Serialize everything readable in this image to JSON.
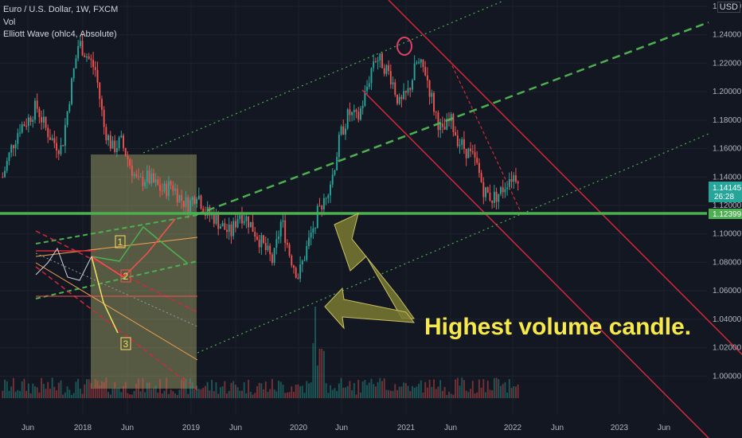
{
  "header": {
    "title": "Euro / U.S. Dollar, 1W, FXCM",
    "indicator_1": "Vol",
    "indicator_2": "Elliott Wave (ohlc4, Absolute)"
  },
  "currency_label": "USD",
  "chart_data": {
    "type": "candlestick",
    "xlabel": "",
    "ylabel": "",
    "ylim": [
      0.98,
      1.26
    ],
    "x_ticks": [
      "Jun",
      "2018",
      "Jun",
      "2019",
      "Jun",
      "2020",
      "Jun",
      "2021",
      "Jun",
      "2022",
      "Jun",
      "2023",
      "Jun"
    ],
    "y_ticks": [
      "1.26000",
      "1.24000",
      "1.22000",
      "1.20000",
      "1.18000",
      "1.16000",
      "1.14000",
      "1.12000",
      "1.10000",
      "1.08000",
      "1.06000",
      "1.04000",
      "1.02000",
      "1.00000"
    ],
    "price_tags": {
      "current": "1.14145",
      "countdown": "26:28",
      "support": "1.12399"
    },
    "support_level": 1.12399,
    "annotation": "Highest volume candle.",
    "wave_labels": [
      "1",
      "2",
      "3"
    ],
    "colors": {
      "up": "#26a69a",
      "down": "#ef5350",
      "support": "#4caf50",
      "channel_red": "#d0283c",
      "channel_green": "#4caf50",
      "annotation": "#f7e94a"
    },
    "price_series": [
      1.14,
      1.16,
      1.175,
      1.18,
      1.19,
      1.175,
      1.165,
      1.16,
      1.2,
      1.235,
      1.225,
      1.215,
      1.175,
      1.16,
      1.165,
      1.15,
      1.135,
      1.14,
      1.135,
      1.13,
      1.135,
      1.125,
      1.12,
      1.13,
      1.115,
      1.112,
      1.105,
      1.1,
      1.115,
      1.11,
      1.1,
      1.09,
      1.08,
      1.11,
      1.085,
      1.07,
      1.09,
      1.11,
      1.125,
      1.14,
      1.17,
      1.185,
      1.18,
      1.2,
      1.225,
      1.22,
      1.21,
      1.19,
      1.2,
      1.22,
      1.215,
      1.19,
      1.17,
      1.18,
      1.165,
      1.158,
      1.15,
      1.13,
      1.125,
      1.13,
      1.14,
      1.14145
    ]
  }
}
